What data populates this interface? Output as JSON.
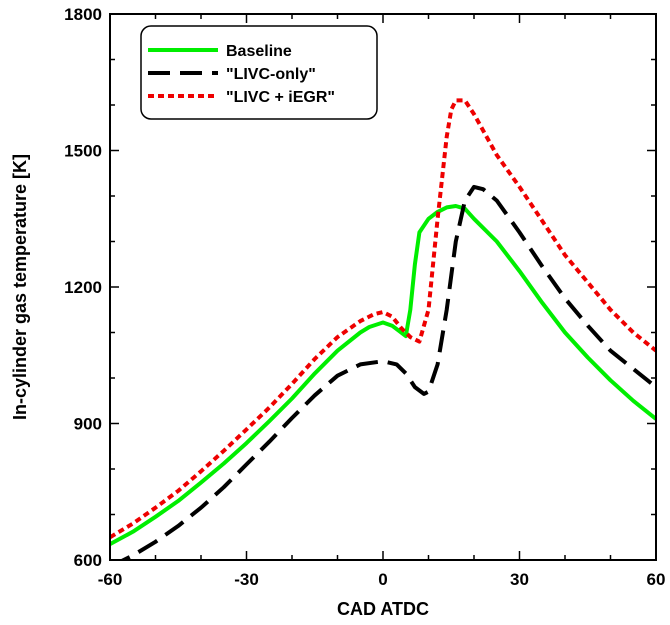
{
  "chart_data": {
    "type": "line",
    "title": "",
    "xlabel": "CAD ATDC",
    "ylabel": "In-cylinder gas temperature [K]",
    "xlim": [
      -60,
      60
    ],
    "ylim": [
      600,
      1800
    ],
    "xticks": [
      -60,
      -30,
      0,
      30,
      60
    ],
    "yticks": [
      600,
      900,
      1200,
      1500,
      1800
    ],
    "xtick_labels": [
      "-60",
      "-30",
      "0",
      "30",
      "60"
    ],
    "ytick_labels": [
      "600",
      "900",
      "1200",
      "1500",
      "1800"
    ],
    "grid": false,
    "legend_position": "top-left",
    "series": [
      {
        "name": "Baseline",
        "color": "#00ee00",
        "dash": "solid",
        "x": [
          -60,
          -55,
          -50,
          -45,
          -40,
          -35,
          -30,
          -25,
          -20,
          -15,
          -10,
          -5,
          -3,
          0,
          2,
          4,
          5,
          6,
          7,
          8,
          10,
          12,
          14,
          16,
          18,
          20,
          25,
          30,
          35,
          40,
          45,
          50,
          55,
          60
        ],
        "y": [
          635,
          662,
          695,
          730,
          770,
          812,
          857,
          905,
          955,
          1010,
          1060,
          1100,
          1112,
          1122,
          1115,
          1100,
          1092,
          1150,
          1250,
          1320,
          1350,
          1365,
          1375,
          1378,
          1372,
          1350,
          1300,
          1235,
          1165,
          1100,
          1045,
          995,
          950,
          910
        ]
      },
      {
        "name": "\"LIVC-only\"",
        "color": "#000000",
        "dash": "long-dash",
        "x": [
          -60,
          -58,
          -55,
          -50,
          -45,
          -40,
          -35,
          -30,
          -25,
          -20,
          -15,
          -10,
          -5,
          0,
          3,
          5,
          7,
          9,
          10,
          12,
          14,
          16,
          18,
          20,
          22,
          25,
          30,
          35,
          40,
          45,
          50,
          55,
          60
        ],
        "y": [
          585,
          595,
          610,
          640,
          675,
          715,
          760,
          810,
          860,
          912,
          962,
          1005,
          1030,
          1037,
          1030,
          1010,
          980,
          965,
          970,
          1030,
          1150,
          1300,
          1390,
          1420,
          1415,
          1390,
          1320,
          1245,
          1175,
          1115,
          1060,
          1020,
          980
        ]
      },
      {
        "name": "\"LIVC + iEGR\"",
        "color": "#ee0000",
        "dash": "dotted",
        "x": [
          -60,
          -55,
          -50,
          -45,
          -40,
          -35,
          -30,
          -25,
          -20,
          -15,
          -10,
          -5,
          -2,
          0,
          2,
          4,
          6,
          8,
          10,
          12,
          14,
          15,
          16,
          18,
          20,
          25,
          30,
          35,
          40,
          45,
          50,
          55,
          60
        ],
        "y": [
          650,
          680,
          715,
          752,
          795,
          840,
          887,
          935,
          987,
          1042,
          1090,
          1125,
          1140,
          1145,
          1135,
          1110,
          1090,
          1080,
          1150,
          1350,
          1530,
          1590,
          1610,
          1610,
          1580,
          1490,
          1420,
          1345,
          1270,
          1210,
          1150,
          1100,
          1060
        ]
      }
    ]
  }
}
